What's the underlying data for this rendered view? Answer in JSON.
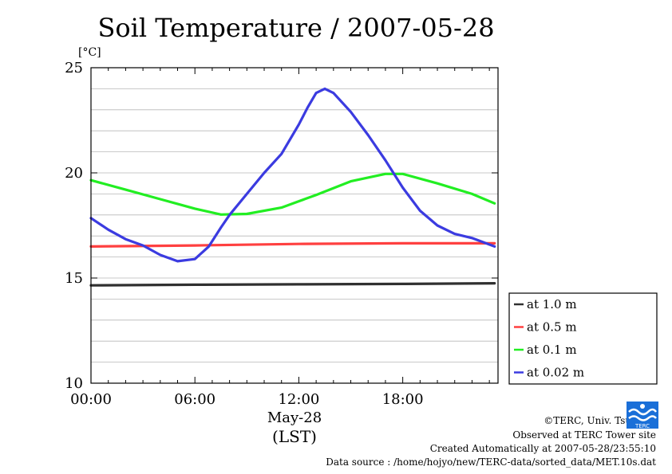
{
  "chart_data": {
    "type": "line",
    "title": "Soil Temperature / 2007-05-28",
    "ylabel": "[°C]",
    "xlabel": "May-28",
    "xlabel2": "(LST)",
    "xlim": [
      0,
      23.5
    ],
    "ylim": [
      10,
      25
    ],
    "x_ticks": [
      {
        "value": 0,
        "label": "00:00"
      },
      {
        "value": 6,
        "label": "06:00"
      },
      {
        "value": 12,
        "label": "12:00"
      },
      {
        "value": 18,
        "label": "18:00"
      }
    ],
    "y_ticks": [
      {
        "value": 10,
        "label": "10"
      },
      {
        "value": 15,
        "label": "15"
      },
      {
        "value": 20,
        "label": "20"
      },
      {
        "value": 25,
        "label": "25"
      }
    ],
    "y_minor_step": 1,
    "grid": true,
    "legend_position": "right-bottom",
    "series": [
      {
        "name": "at 1.0 m",
        "color": "#303030",
        "x": [
          0,
          6,
          12,
          18,
          23.3
        ],
        "y": [
          14.65,
          14.68,
          14.7,
          14.72,
          14.75
        ]
      },
      {
        "name": "at 0.5 m",
        "color": "#ff4040",
        "x": [
          0,
          6,
          12,
          18,
          23.3
        ],
        "y": [
          16.5,
          16.55,
          16.62,
          16.65,
          16.65
        ]
      },
      {
        "name": "at 0.1 m",
        "color": "#22ee22",
        "x": [
          0,
          2,
          4,
          6,
          7.5,
          9,
          11,
          13,
          15,
          17,
          18,
          20,
          22,
          23.3
        ],
        "y": [
          19.65,
          19.2,
          18.75,
          18.3,
          18.02,
          18.05,
          18.35,
          18.95,
          19.6,
          19.95,
          19.95,
          19.5,
          19.0,
          18.55
        ]
      },
      {
        "name": "at 0.02 m",
        "color": "#3b3be0",
        "x": [
          0,
          1,
          2,
          3,
          4,
          5,
          6,
          6.8,
          7.5,
          8,
          9,
          10,
          11,
          12,
          12.5,
          13,
          13.5,
          14,
          15,
          16,
          17,
          18,
          19,
          20,
          21,
          22,
          23.3
        ],
        "y": [
          17.85,
          17.3,
          16.85,
          16.55,
          16.1,
          15.8,
          15.9,
          16.5,
          17.4,
          18.0,
          19.0,
          20.0,
          20.9,
          22.3,
          23.1,
          23.8,
          24.0,
          23.8,
          22.9,
          21.8,
          20.6,
          19.3,
          18.2,
          17.5,
          17.1,
          16.9,
          16.5
        ]
      }
    ]
  },
  "footer": {
    "copyright": "©TERC, Univ. Tsukuba",
    "observed": "Observed at TERC Tower site",
    "created": "Created Automatically at 2007-05-28/23:55:10",
    "source": "Data source : /home/hojyo/new/TERC-data/sorted_data/MET.10s.dat"
  },
  "logo": {
    "text": "TERC",
    "color": "#1a6fd8"
  }
}
